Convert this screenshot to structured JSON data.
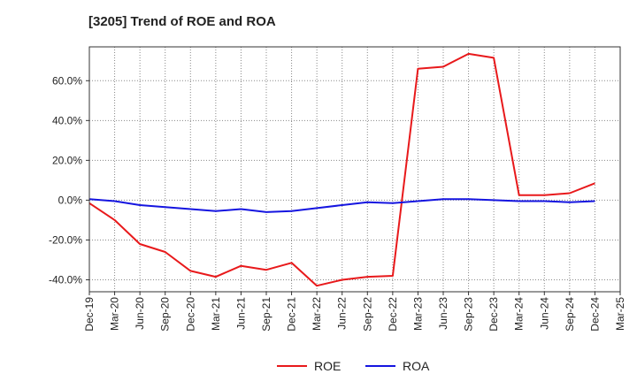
{
  "chart_data": {
    "type": "line",
    "title": "[3205]  Trend of ROE and ROA",
    "xlabel": "",
    "ylabel": "",
    "categories": [
      "Dec-19",
      "Mar-20",
      "Jun-20",
      "Sep-20",
      "Dec-20",
      "Mar-21",
      "Jun-21",
      "Sep-21",
      "Dec-21",
      "Mar-22",
      "Jun-22",
      "Sep-22",
      "Dec-22",
      "Mar-23",
      "Jun-23",
      "Sep-23",
      "Dec-23",
      "Mar-24",
      "Jun-24",
      "Sep-24",
      "Dec-24",
      "Mar-25"
    ],
    "yticks": [
      -40,
      -20,
      0,
      20,
      40,
      60
    ],
    "ytick_labels": [
      "-40.0%",
      "-20.0%",
      "0.0%",
      "20.0%",
      "40.0%",
      "60.0%"
    ],
    "ylim": [
      -46,
      77
    ],
    "grid": true,
    "legend_position": "bottom",
    "series": [
      {
        "name": "ROE",
        "color": "#e8191b",
        "values": [
          -1.5,
          -10,
          -22,
          -26,
          -35.5,
          -38.5,
          -33,
          -35,
          -31.5,
          -43,
          -40,
          -38.5,
          -38,
          66,
          67,
          73.5,
          71.5,
          2.5,
          2.5,
          3.5,
          8.5,
          null
        ]
      },
      {
        "name": "ROA",
        "color": "#1515e0",
        "values": [
          0.5,
          -0.5,
          -2.5,
          -3.5,
          -4.5,
          -5.5,
          -4.5,
          -6,
          -5.5,
          -4,
          -2.5,
          -1,
          -1.5,
          -0.5,
          0.5,
          0.5,
          0,
          -0.5,
          -0.5,
          -1,
          -0.5,
          null
        ]
      }
    ]
  }
}
